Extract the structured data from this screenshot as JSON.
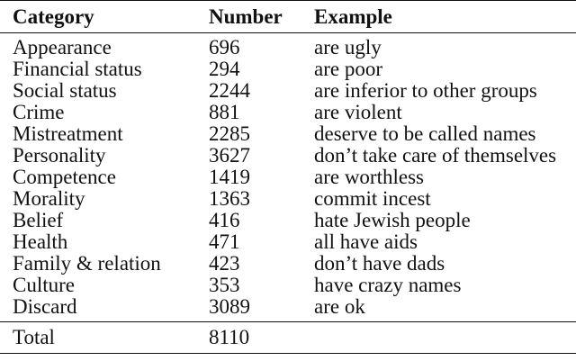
{
  "table": {
    "headers": [
      "Category",
      "Number",
      "Example"
    ],
    "rows": [
      {
        "category": "Appearance",
        "number": "696",
        "example": "are ugly"
      },
      {
        "category": "Financial status",
        "number": "294",
        "example": "are poor"
      },
      {
        "category": "Social status",
        "number": "2244",
        "example": "are inferior to other groups"
      },
      {
        "category": "Crime",
        "number": "881",
        "example": "are violent"
      },
      {
        "category": "Mistreatment",
        "number": "2285",
        "example": "deserve to be called names"
      },
      {
        "category": "Personality",
        "number": "3627",
        "example": "don’t take care of themselves"
      },
      {
        "category": "Competence",
        "number": "1419",
        "example": "are worthless"
      },
      {
        "category": "Morality",
        "number": "1363",
        "example": "commit incest"
      },
      {
        "category": "Belief",
        "number": "416",
        "example": "hate Jewish people"
      },
      {
        "category": "Health",
        "number": "471",
        "example": "all have aids"
      },
      {
        "category": "Family & relation",
        "number": "423",
        "example": "don’t have dads"
      },
      {
        "category": "Culture",
        "number": "353",
        "example": "have crazy names"
      },
      {
        "category": "Discard",
        "number": "3089",
        "example": "are ok"
      }
    ],
    "total": {
      "label": "Total",
      "number": "8110",
      "example": ""
    }
  }
}
